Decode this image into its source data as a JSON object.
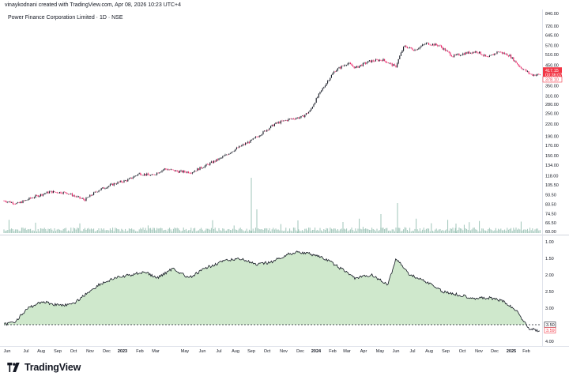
{
  "header": {
    "attribution": "vinaykodnani created with TradingView.com, Apr 08, 2026 10:23 UTC+4"
  },
  "title": "Power Finance Corporation Limited · 1D · NSE",
  "footer": {
    "brand": "TradingView"
  },
  "colors": {
    "up": "#131722",
    "down": "#e91e63",
    "volume": "#9fc5b8",
    "area_fill": "#cfe8cc",
    "area_line": "#131722",
    "price_tag": "#f23645"
  },
  "price_axis": {
    "scale": "log",
    "ticks": [
      "840.00",
      "720.00",
      "645.00",
      "570.00",
      "510.00",
      "450.00",
      "350.00",
      "310.00",
      "280.00",
      "250.00",
      "220.00",
      "190.00",
      "170.00",
      "150.00",
      "134.00",
      "118.00",
      "105.50",
      "93.50",
      "83.50",
      "74.50",
      "66.50",
      "60.00"
    ],
    "last_price_label": "417.15",
    "countdown_label": "03:36:07",
    "secondary_label": "378.10"
  },
  "indicator_axis": {
    "inverted": true,
    "ticks": [
      "1.00",
      "1.50",
      "2.00",
      "2.50",
      "3.00",
      "3.50",
      "4.00"
    ],
    "current_label": "3.50",
    "secondary_label": "3.59"
  },
  "time_axis": {
    "labels": [
      {
        "t": "Jun",
        "bold": false
      },
      {
        "t": "Jul",
        "bold": false
      },
      {
        "t": "Aug",
        "bold": false
      },
      {
        "t": "Sep",
        "bold": false
      },
      {
        "t": "Oct",
        "bold": false
      },
      {
        "t": "Nov",
        "bold": false
      },
      {
        "t": "Dec",
        "bold": false
      },
      {
        "t": "2023",
        "bold": true
      },
      {
        "t": "Feb",
        "bold": false
      },
      {
        "t": "Mar",
        "bold": false
      },
      {
        "t": "May",
        "bold": false
      },
      {
        "t": "Jun",
        "bold": false
      },
      {
        "t": "Jul",
        "bold": false
      },
      {
        "t": "Aug",
        "bold": false
      },
      {
        "t": "Sep",
        "bold": false
      },
      {
        "t": "Oct",
        "bold": false
      },
      {
        "t": "Nov",
        "bold": false
      },
      {
        "t": "Dec",
        "bold": false
      },
      {
        "t": "2024",
        "bold": true
      },
      {
        "t": "Feb",
        "bold": false
      },
      {
        "t": "Mar",
        "bold": false
      },
      {
        "t": "Apr",
        "bold": false
      },
      {
        "t": "May",
        "bold": false
      },
      {
        "t": "Jun",
        "bold": false
      },
      {
        "t": "Jul",
        "bold": false
      },
      {
        "t": "Aug",
        "bold": false
      },
      {
        "t": "Sep",
        "bold": false
      },
      {
        "t": "Oct",
        "bold": false
      },
      {
        "t": "Nov",
        "bold": false
      },
      {
        "t": "Dec",
        "bold": false
      },
      {
        "t": "2025",
        "bold": true
      },
      {
        "t": "Feb",
        "bold": false
      }
    ]
  },
  "chart_data": [
    {
      "type": "line",
      "name": "Power Finance Corporation Limited",
      "yscale": "log",
      "ylim": [
        60,
        840
      ],
      "x": [
        "2022-05-25",
        "2022-06-20",
        "2022-07-20",
        "2022-08-20",
        "2022-09-20",
        "2022-10-10",
        "2022-10-25",
        "2022-11-20",
        "2022-12-20",
        "2023-01-15",
        "2023-02-05",
        "2023-03-01",
        "2023-03-25",
        "2023-04-20",
        "2023-05-15",
        "2023-06-10",
        "2023-07-10",
        "2023-08-10",
        "2023-09-05",
        "2023-09-25",
        "2023-10-20",
        "2023-11-15",
        "2023-12-10",
        "2023-12-25",
        "2024-01-20",
        "2024-02-10",
        "2024-03-05",
        "2024-03-20",
        "2024-04-15",
        "2024-05-10",
        "2024-06-04",
        "2024-06-20",
        "2024-07-10",
        "2024-08-01",
        "2024-08-25",
        "2024-09-20",
        "2024-10-15",
        "2024-11-05",
        "2024-11-25",
        "2024-12-15",
        "2025-01-05",
        "2025-01-25",
        "2025-02-15",
        "2025-03-05"
      ],
      "values": [
        87,
        84,
        91,
        97,
        96,
        91,
        88,
        99,
        107,
        112,
        121,
        118,
        128,
        124,
        123,
        133,
        146,
        165,
        180,
        197,
        221,
        233,
        240,
        258,
        345,
        420,
        460,
        435,
        470,
        480,
        440,
        565,
        540,
        585,
        570,
        500,
        520,
        530,
        490,
        530,
        505,
        440,
        400,
        400
      ]
    },
    {
      "type": "area",
      "name": "indicator",
      "inverted_axis": true,
      "ylim": [
        1.0,
        4.0
      ],
      "reference_line": 3.5,
      "x": [
        "2022-05-25",
        "2022-06-15",
        "2022-07-10",
        "2022-08-05",
        "2022-09-01",
        "2022-10-01",
        "2022-10-25",
        "2022-11-20",
        "2022-12-20",
        "2023-01-20",
        "2023-02-15",
        "2023-03-10",
        "2023-04-10",
        "2023-05-10",
        "2023-06-10",
        "2023-07-10",
        "2023-08-15",
        "2023-09-15",
        "2023-10-15",
        "2023-11-10",
        "2023-12-01",
        "2024-01-05",
        "2024-02-01",
        "2024-03-01",
        "2024-03-20",
        "2024-04-20",
        "2024-05-20",
        "2024-06-05",
        "2024-07-01",
        "2024-08-01",
        "2024-09-01",
        "2024-10-01",
        "2024-11-01",
        "2024-12-01",
        "2024-12-25",
        "2025-01-20",
        "2025-02-10",
        "2025-03-05"
      ],
      "values": [
        3.5,
        3.4,
        3.0,
        2.8,
        2.9,
        2.9,
        2.6,
        2.3,
        2.1,
        2.0,
        1.9,
        2.1,
        1.8,
        2.1,
        1.8,
        1.6,
        1.5,
        1.7,
        1.6,
        1.4,
        1.3,
        1.4,
        1.6,
        1.9,
        2.1,
        2.0,
        2.3,
        1.5,
        2.0,
        2.2,
        2.5,
        2.6,
        2.7,
        2.7,
        2.8,
        3.1,
        3.6,
        3.7
      ]
    }
  ]
}
